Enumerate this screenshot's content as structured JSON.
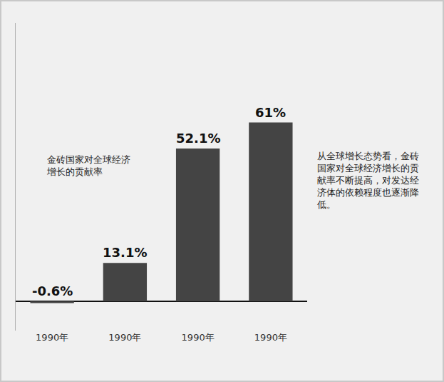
{
  "chart_data": {
    "type": "bar",
    "categories": [
      "1990年",
      "1990年",
      "1990年",
      "1990年"
    ],
    "values": [
      -0.6,
      13.1,
      52.1,
      61
    ],
    "value_labels": [
      "-0.6%",
      "13.1%",
      "52.1%",
      "61%"
    ],
    "data_labels": true,
    "color": "#444444",
    "ylim": [
      -10,
      95
    ],
    "yticks": [],
    "tick_labels": "x",
    "grid": false,
    "annotations": [
      "金砖国家对全球经济增长的贡献率",
      "从全球增长态势看，金砖国家对全球经济增长的贡献率不断提高，对发达经济体的依赖程度也逐渐降低。"
    ]
  }
}
